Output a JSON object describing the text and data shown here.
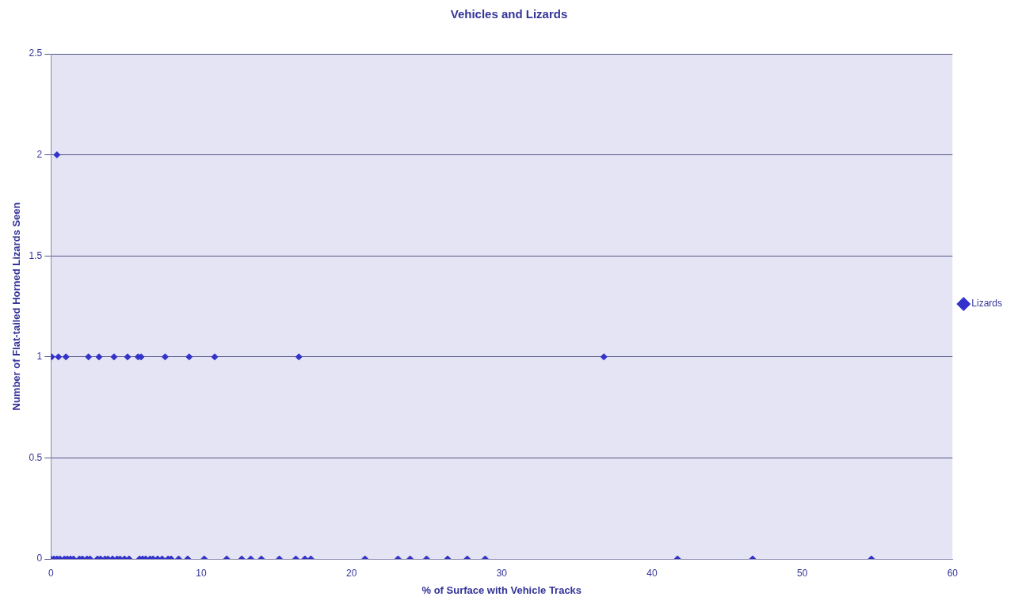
{
  "chart_data": {
    "type": "scatter",
    "title": "Vehicles and Lizards",
    "xlabel": "% of Surface with Vehicle Tracks",
    "ylabel": "Number of Flat-tailed Horned Lizards Seen",
    "xlim": [
      0,
      60
    ],
    "xticks": [
      0,
      10,
      20,
      30,
      40,
      50,
      60
    ],
    "ylim": [
      0,
      2.5
    ],
    "yticks": [
      0,
      0.5,
      1,
      1.5,
      2,
      2.5
    ],
    "grid": "y",
    "legend": "right",
    "marker": "diamond",
    "series": [
      {
        "name": "Lizards",
        "color": "#3333cc",
        "x": [
          0.4,
          0.05,
          0.5,
          1.0,
          2.5,
          3.2,
          4.2,
          5.1,
          5.8,
          6.0,
          7.6,
          9.2,
          10.9,
          16.5,
          36.8,
          0,
          0.2,
          0.4,
          0.6,
          0.9,
          1.1,
          1.3,
          1.5,
          1.9,
          2.1,
          2.4,
          2.6,
          3.1,
          3.3,
          3.6,
          3.8,
          4.1,
          4.4,
          4.6,
          4.9,
          5.2,
          5.9,
          6.1,
          6.3,
          6.6,
          6.8,
          7.1,
          7.4,
          7.8,
          8.0,
          8.5,
          9.1,
          10.2,
          11.7,
          12.7,
          13.3,
          14.0,
          15.2,
          16.3,
          16.9,
          17.3,
          20.9,
          23.1,
          23.9,
          25.0,
          26.4,
          27.7,
          28.9,
          41.7,
          46.7,
          54.6
        ],
        "values": [
          2,
          1,
          1,
          1,
          1,
          1,
          1,
          1,
          1,
          1,
          1,
          1,
          1,
          1,
          1,
          0,
          0,
          0,
          0,
          0,
          0,
          0,
          0,
          0,
          0,
          0,
          0,
          0,
          0,
          0,
          0,
          0,
          0,
          0,
          0,
          0,
          0,
          0,
          0,
          0,
          0,
          0,
          0,
          0,
          0,
          0,
          0,
          0,
          0,
          0,
          0,
          0,
          0,
          0,
          0,
          0,
          0,
          0,
          0,
          0,
          0,
          0,
          0,
          0,
          0,
          0
        ]
      }
    ]
  }
}
